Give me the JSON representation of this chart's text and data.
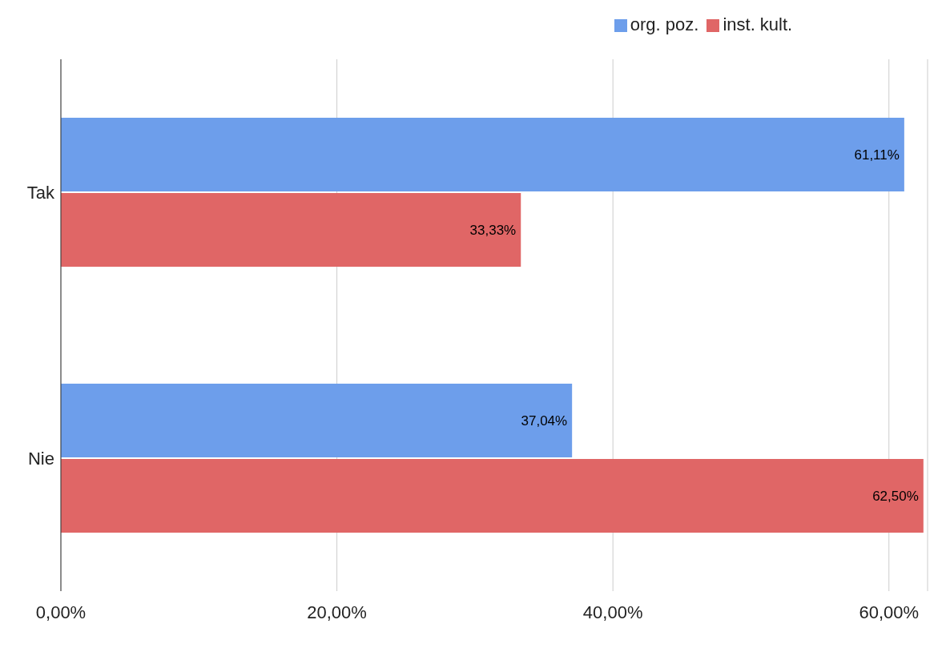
{
  "chart_data": {
    "type": "bar",
    "orientation": "horizontal",
    "categories": [
      "Tak",
      "Nie"
    ],
    "series": [
      {
        "name": "org. poz.",
        "color": "#6d9eeb",
        "values": [
          61.11,
          37.04
        ],
        "value_labels": [
          "61,11%",
          "37,04%"
        ]
      },
      {
        "name": "inst. kult.",
        "color": "#e06666",
        "values": [
          33.33,
          62.5
        ],
        "value_labels": [
          "33,33%",
          "62,50%"
        ]
      }
    ],
    "xlim": [
      0,
      62.8
    ],
    "xticks": [
      {
        "value": 0,
        "label": "0,00%"
      },
      {
        "value": 20,
        "label": "20,00%"
      },
      {
        "value": 40,
        "label": "40,00%"
      },
      {
        "value": 60,
        "label": "60,00%"
      }
    ],
    "grid": "x",
    "legend": "top"
  }
}
